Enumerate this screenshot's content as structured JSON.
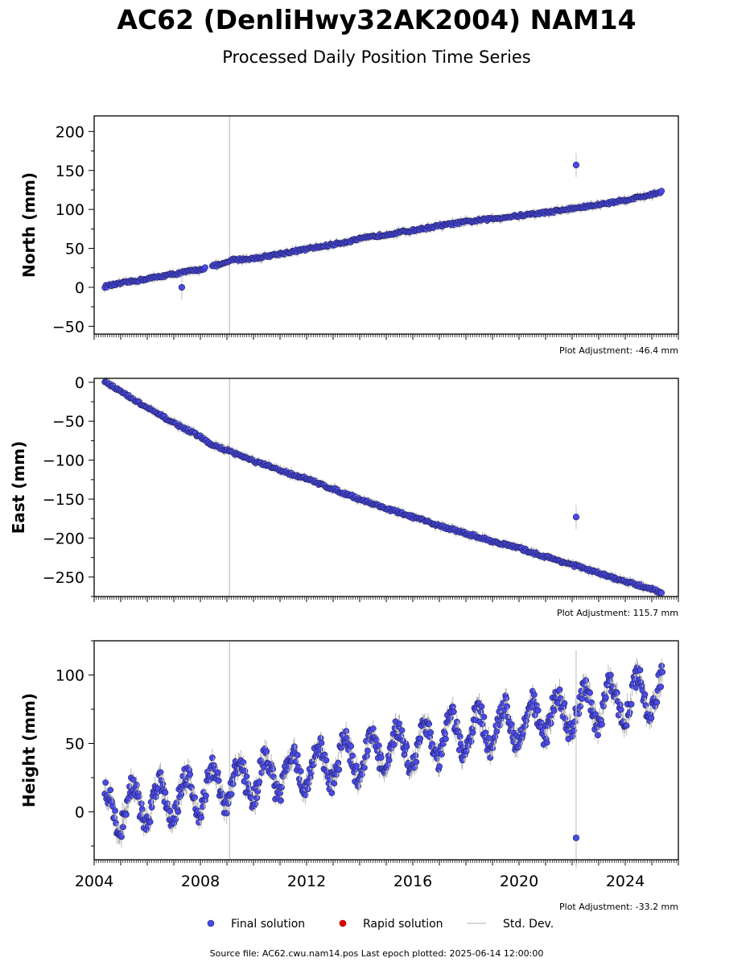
{
  "title": "AC62 (DenliHwy32AK2004) NAM14",
  "subtitle": "Processed Daily Position Time Series",
  "source_text": "Source file: AC62.cwu.nam14.pos  Last epoch plotted: 2025-06-14 12:00:00",
  "legend": [
    {
      "label": "Final solution",
      "color": "#4a4ae6",
      "kind": "marker"
    },
    {
      "label": "Rapid solution",
      "color": "#e00000",
      "kind": "marker"
    },
    {
      "label": "Std. Dev.",
      "color": "#cccccc",
      "kind": "line"
    }
  ],
  "chart_data": [
    {
      "type": "scatter",
      "ylabel": "North (mm)",
      "xlim": [
        2004.0,
        2026.0
      ],
      "ylim": [
        -60,
        220
      ],
      "yticks": [
        -50,
        0,
        50,
        100,
        150,
        200
      ],
      "yticklabels": [
        "−50",
        "0",
        "50",
        "100",
        "150",
        "200"
      ],
      "adjustment": "Plot Adjustment: -46.4 mm",
      "show_xticklabels": false,
      "series": [
        {
          "x": [
            2004.4,
            2005.0,
            2006.0,
            2007.0,
            2008.0,
            2008.4,
            2009.0,
            2009.15,
            2010.0,
            2011.0,
            2012.0,
            2013.0,
            2014.0,
            2015.0,
            2016.0,
            2017.0,
            2018.0,
            2019.0,
            2020.0,
            2021.0,
            2022.0,
            2023.0,
            2024.0,
            2025.0,
            2025.4
          ],
          "y": [
            1,
            5,
            11,
            17,
            23,
            27,
            31,
            35,
            37,
            43,
            49,
            55,
            62,
            68,
            73,
            79,
            84,
            88,
            92,
            96,
            101,
            106,
            112,
            119,
            123
          ]
        }
      ],
      "outliers": [
        {
          "x": 2007.3,
          "y": 0
        },
        {
          "x": 2022.15,
          "y": 157
        }
      ]
    },
    {
      "type": "scatter",
      "ylabel": "East (mm)",
      "xlim": [
        2004.0,
        2026.0
      ],
      "ylim": [
        -275,
        5
      ],
      "yticks": [
        -250,
        -200,
        -150,
        -100,
        -50,
        0
      ],
      "yticklabels": [
        "−250",
        "−200",
        "−150",
        "−100",
        "−50",
        "0"
      ],
      "adjustment": "Plot Adjustment: 115.7 mm",
      "show_xticklabels": false,
      "series": [
        {
          "x": [
            2004.4,
            2005.0,
            2006.0,
            2007.0,
            2008.0,
            2008.4,
            2009.0,
            2010.0,
            2011.0,
            2012.0,
            2013.0,
            2014.0,
            2015.0,
            2016.0,
            2017.0,
            2018.0,
            2019.0,
            2020.0,
            2021.0,
            2022.0,
            2023.0,
            2024.0,
            2025.0,
            2025.4
          ],
          "y": [
            2,
            -12,
            -33,
            -52,
            -70,
            -80,
            -87,
            -101,
            -113,
            -124,
            -137,
            -150,
            -162,
            -173,
            -184,
            -194,
            -204,
            -213,
            -224,
            -234,
            -245,
            -256,
            -265,
            -271
          ]
        }
      ],
      "outliers": [
        {
          "x": 2022.15,
          "y": -173
        }
      ]
    },
    {
      "type": "scatter",
      "ylabel": "Height (mm)",
      "xlim": [
        2004.0,
        2026.0
      ],
      "ylim": [
        -35,
        125
      ],
      "yticks": [
        0,
        50,
        100
      ],
      "yticklabels": [
        "0",
        "50",
        "100"
      ],
      "adjustment": "Plot Adjustment: -33.2 mm",
      "show_xticklabels": true,
      "xticks": [
        2004,
        2008,
        2012,
        2016,
        2020,
        2024
      ],
      "xticklabels": [
        "2004",
        "2008",
        "2012",
        "2016",
        "2020",
        "2024"
      ],
      "series": [
        {
          "trend_start": [
            2004.4,
            0
          ],
          "trend_end": [
            2025.4,
            88
          ],
          "seasonal_amplitude": 15
        }
      ],
      "outliers": [
        {
          "x": 2022.15,
          "y": -19
        }
      ]
    }
  ]
}
